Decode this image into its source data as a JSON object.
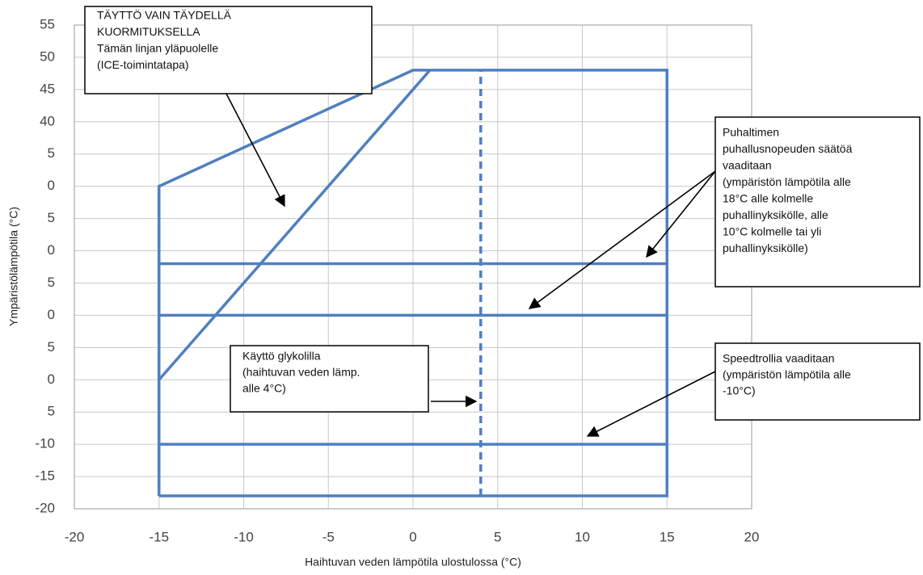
{
  "chart_data": {
    "type": "line",
    "xlabel": "Haihtuvan veden lämpötila ulostulossa (°C)",
    "ylabel": "Ympäristölämpötila (°C)",
    "xlim": [
      -20,
      20
    ],
    "ylim": [
      -20,
      55
    ],
    "xticks": [
      -20,
      -15,
      -10,
      -5,
      0,
      5,
      10,
      15,
      20
    ],
    "yticks": [
      55,
      50,
      45,
      40,
      {
        "value": 35,
        "label": "5"
      },
      {
        "value": 30,
        "label": "0"
      },
      {
        "value": 25,
        "label": "5"
      },
      {
        "value": 20,
        "label": "0"
      },
      {
        "value": 15,
        "label": "5"
      },
      {
        "value": 10,
        "label": "0"
      },
      {
        "value": 5,
        "label": "5"
      },
      0,
      {
        "value": -5,
        "label": "5"
      },
      -10,
      -15,
      -20
    ],
    "grid": true,
    "series": [
      {
        "color": "#4f7fbf",
        "x": [
          -15,
          -15,
          0,
          15,
          15,
          -15
        ],
        "values": [
          -18,
          30,
          48,
          48,
          -18,
          -18
        ]
      },
      {
        "color": "#4f7fbf",
        "x": [
          -15,
          1
        ],
        "values": [
          0,
          48
        ]
      },
      {
        "color": "#4f7fbf",
        "x": [
          -15,
          15
        ],
        "values": [
          18,
          18
        ]
      },
      {
        "color": "#4f7fbf",
        "x": [
          -15,
          15
        ],
        "values": [
          10,
          10
        ]
      },
      {
        "color": "#4f7fbf",
        "x": [
          -15,
          15
        ],
        "values": [
          -10,
          -10
        ]
      },
      {
        "color": "#4f7fbf",
        "dashed": true,
        "x": [
          4,
          4
        ],
        "values": [
          -18,
          48
        ]
      }
    ],
    "annotations": [
      {
        "lines": [
          "TÄYTTÖ VAIN TÄYDELLÄ",
          "KUORMITUKSELLA",
          "Tämän linjan yläpuolelle",
          "(ICE-toimintatapa)"
        ]
      },
      {
        "lines": [
          "Puhaltimen",
          "puhallusnopeuden säätöä",
          "vaaditaan",
          "(ympäristön lämpötila alle",
          "18°C alle kolmelle",
          "puhallinyksikölle, alle",
          "10°C kolmelle tai yli",
          "puhallinyksikölle)"
        ]
      },
      {
        "lines": [
          "Käyttö glykolilla",
          "(haihtuvan veden lämp.",
          "alle 4°C)"
        ]
      },
      {
        "lines": [
          "Speedtrollia vaaditaan",
          "(ympäristön lämpötila alle",
          "-10°C)"
        ]
      }
    ]
  }
}
